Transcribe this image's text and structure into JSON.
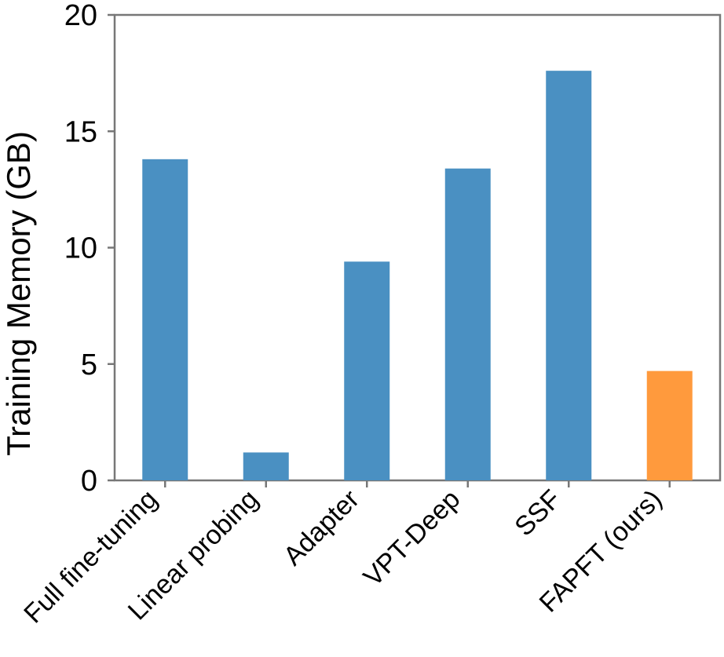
{
  "chart_data": {
    "type": "bar",
    "title": "",
    "xlabel": "",
    "ylabel": "Training Memory (GB)",
    "ylim": [
      0,
      20
    ],
    "yticks": [
      0,
      5,
      10,
      15,
      20
    ],
    "ytick_labels": [
      "0",
      "5",
      "10",
      "15",
      "20"
    ],
    "grid": false,
    "legend": "none",
    "categories": [
      "Full fine-tuning",
      "Linear probing",
      "Adapter",
      "VPT-Deep",
      "SSF",
      "FAPFT (ours)"
    ],
    "values": [
      13.8,
      1.2,
      9.4,
      13.4,
      17.6,
      4.7
    ],
    "colors": [
      "#4a90c2",
      "#4a90c2",
      "#4a90c2",
      "#4a90c2",
      "#4a90c2",
      "#ff9a3d"
    ]
  },
  "style": {
    "axis_color": "#777777"
  }
}
